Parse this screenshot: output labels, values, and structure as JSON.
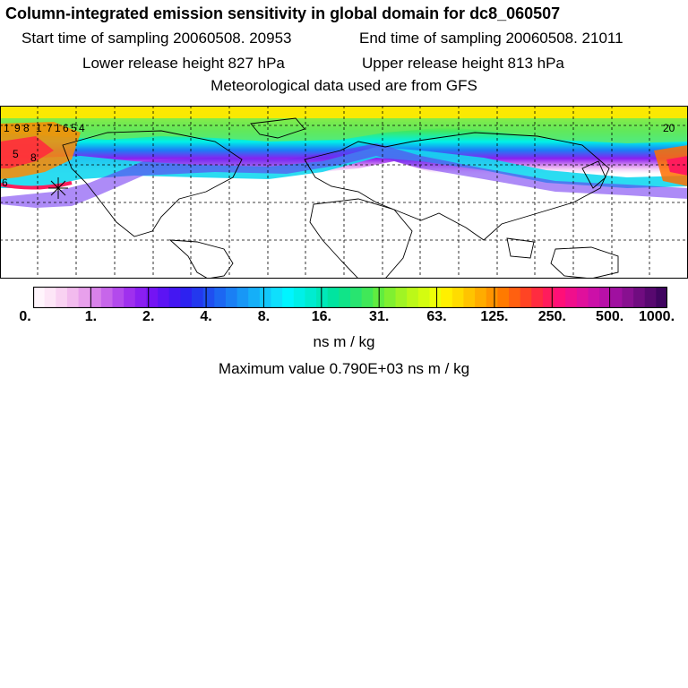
{
  "header": {
    "title": "Column-integrated emission sensitivity in global domain for dc8_060507",
    "start_time": "Start time of sampling 20060508. 20953",
    "end_time": "End time of sampling 20060508. 21011",
    "lower_height": "Lower release height  827 hPa",
    "upper_height": "Upper release height  813 hPa",
    "met_data": "Meteorological data used are from GFS"
  },
  "map": {
    "labels": [
      "1",
      "9",
      "8",
      "1",
      "7",
      "1",
      "6",
      "5",
      "4",
      "5",
      "8",
      "6",
      "20"
    ],
    "release_marker": "asterisk-marker"
  },
  "colorbar": {
    "ticks": [
      "0.",
      "1.",
      "2.",
      "4.",
      "8.",
      "16.",
      "31.",
      "63.",
      "125.",
      "250.",
      "500.",
      "1000."
    ],
    "colors": [
      "#fff5fc",
      "#fde6f7",
      "#f9d2f2",
      "#f2bbee",
      "#e8a0ec",
      "#d982ea",
      "#c766ea",
      "#b34aec",
      "#9f30ee",
      "#8a1ff1",
      "#7414f4",
      "#5c14f4",
      "#4417f2",
      "#2d22f0",
      "#2338ee",
      "#1f4ff0",
      "#1c67f2",
      "#1a7ff4",
      "#1897f6",
      "#15aff8",
      "#12c7fa",
      "#0fdffc",
      "#00f5ff",
      "#00f0e8",
      "#00ecd0",
      "#00e8b8",
      "#00e4a0",
      "#10e488",
      "#28e470",
      "#40e858",
      "#60ec40",
      "#80f030",
      "#a0f424",
      "#bcf818",
      "#d4fc10",
      "#ecff08",
      "#fff000",
      "#ffdc00",
      "#ffc400",
      "#ffac00",
      "#ff9400",
      "#ff7a00",
      "#ff6010",
      "#ff4424",
      "#ff2c40",
      "#ff1c5c",
      "#ff0f78",
      "#f00f8c",
      "#e0109c",
      "#cc10a8",
      "#b810a8",
      "#a010a0",
      "#881090",
      "#700c80",
      "#580870",
      "#400460"
    ],
    "units": "ns m / kg"
  },
  "footer": {
    "max_value": "Maximum value  0.790E+03 ns m / kg"
  }
}
